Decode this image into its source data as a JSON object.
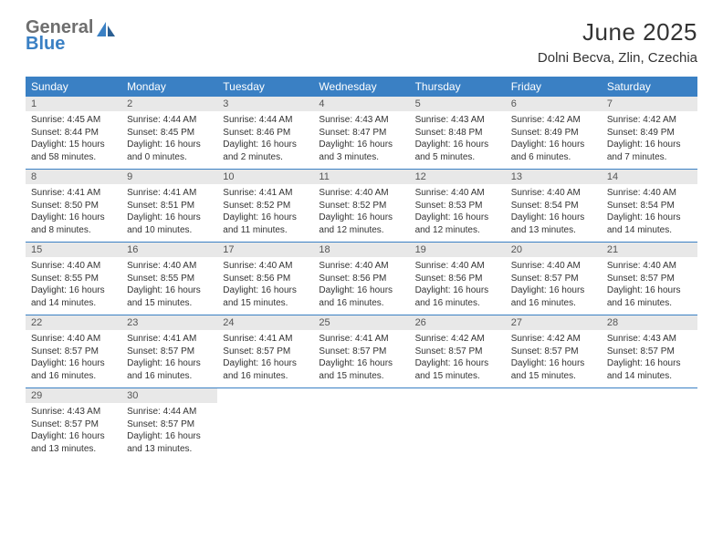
{
  "logo": {
    "text1": "General",
    "text2": "Blue",
    "color1": "#6e6e6e",
    "color2": "#3a80c4"
  },
  "title": "June 2025",
  "location": "Dolni Becva, Zlin, Czechia",
  "weekdays": [
    "Sunday",
    "Monday",
    "Tuesday",
    "Wednesday",
    "Thursday",
    "Friday",
    "Saturday"
  ],
  "colors": {
    "header_bg": "#3a80c4",
    "header_text": "#ffffff",
    "daynum_bg": "#e8e8e8",
    "sep": "#3a80c4",
    "text": "#333333"
  },
  "fonts": {
    "title_size": 26,
    "location_size": 15,
    "weekday_size": 12,
    "daynum_size": 11,
    "cell_size": 10
  },
  "weeks": [
    [
      {
        "n": "1",
        "sr": "4:45 AM",
        "ss": "8:44 PM",
        "dl": "15 hours and 58 minutes."
      },
      {
        "n": "2",
        "sr": "4:44 AM",
        "ss": "8:45 PM",
        "dl": "16 hours and 0 minutes."
      },
      {
        "n": "3",
        "sr": "4:44 AM",
        "ss": "8:46 PM",
        "dl": "16 hours and 2 minutes."
      },
      {
        "n": "4",
        "sr": "4:43 AM",
        "ss": "8:47 PM",
        "dl": "16 hours and 3 minutes."
      },
      {
        "n": "5",
        "sr": "4:43 AM",
        "ss": "8:48 PM",
        "dl": "16 hours and 5 minutes."
      },
      {
        "n": "6",
        "sr": "4:42 AM",
        "ss": "8:49 PM",
        "dl": "16 hours and 6 minutes."
      },
      {
        "n": "7",
        "sr": "4:42 AM",
        "ss": "8:49 PM",
        "dl": "16 hours and 7 minutes."
      }
    ],
    [
      {
        "n": "8",
        "sr": "4:41 AM",
        "ss": "8:50 PM",
        "dl": "16 hours and 8 minutes."
      },
      {
        "n": "9",
        "sr": "4:41 AM",
        "ss": "8:51 PM",
        "dl": "16 hours and 10 minutes."
      },
      {
        "n": "10",
        "sr": "4:41 AM",
        "ss": "8:52 PM",
        "dl": "16 hours and 11 minutes."
      },
      {
        "n": "11",
        "sr": "4:40 AM",
        "ss": "8:52 PM",
        "dl": "16 hours and 12 minutes."
      },
      {
        "n": "12",
        "sr": "4:40 AM",
        "ss": "8:53 PM",
        "dl": "16 hours and 12 minutes."
      },
      {
        "n": "13",
        "sr": "4:40 AM",
        "ss": "8:54 PM",
        "dl": "16 hours and 13 minutes."
      },
      {
        "n": "14",
        "sr": "4:40 AM",
        "ss": "8:54 PM",
        "dl": "16 hours and 14 minutes."
      }
    ],
    [
      {
        "n": "15",
        "sr": "4:40 AM",
        "ss": "8:55 PM",
        "dl": "16 hours and 14 minutes."
      },
      {
        "n": "16",
        "sr": "4:40 AM",
        "ss": "8:55 PM",
        "dl": "16 hours and 15 minutes."
      },
      {
        "n": "17",
        "sr": "4:40 AM",
        "ss": "8:56 PM",
        "dl": "16 hours and 15 minutes."
      },
      {
        "n": "18",
        "sr": "4:40 AM",
        "ss": "8:56 PM",
        "dl": "16 hours and 16 minutes."
      },
      {
        "n": "19",
        "sr": "4:40 AM",
        "ss": "8:56 PM",
        "dl": "16 hours and 16 minutes."
      },
      {
        "n": "20",
        "sr": "4:40 AM",
        "ss": "8:57 PM",
        "dl": "16 hours and 16 minutes."
      },
      {
        "n": "21",
        "sr": "4:40 AM",
        "ss": "8:57 PM",
        "dl": "16 hours and 16 minutes."
      }
    ],
    [
      {
        "n": "22",
        "sr": "4:40 AM",
        "ss": "8:57 PM",
        "dl": "16 hours and 16 minutes."
      },
      {
        "n": "23",
        "sr": "4:41 AM",
        "ss": "8:57 PM",
        "dl": "16 hours and 16 minutes."
      },
      {
        "n": "24",
        "sr": "4:41 AM",
        "ss": "8:57 PM",
        "dl": "16 hours and 16 minutes."
      },
      {
        "n": "25",
        "sr": "4:41 AM",
        "ss": "8:57 PM",
        "dl": "16 hours and 15 minutes."
      },
      {
        "n": "26",
        "sr": "4:42 AM",
        "ss": "8:57 PM",
        "dl": "16 hours and 15 minutes."
      },
      {
        "n": "27",
        "sr": "4:42 AM",
        "ss": "8:57 PM",
        "dl": "16 hours and 15 minutes."
      },
      {
        "n": "28",
        "sr": "4:43 AM",
        "ss": "8:57 PM",
        "dl": "16 hours and 14 minutes."
      }
    ],
    [
      {
        "n": "29",
        "sr": "4:43 AM",
        "ss": "8:57 PM",
        "dl": "16 hours and 13 minutes."
      },
      {
        "n": "30",
        "sr": "4:44 AM",
        "ss": "8:57 PM",
        "dl": "16 hours and 13 minutes."
      },
      null,
      null,
      null,
      null,
      null
    ]
  ],
  "labels": {
    "sunrise": "Sunrise:",
    "sunset": "Sunset:",
    "daylight": "Daylight:"
  }
}
